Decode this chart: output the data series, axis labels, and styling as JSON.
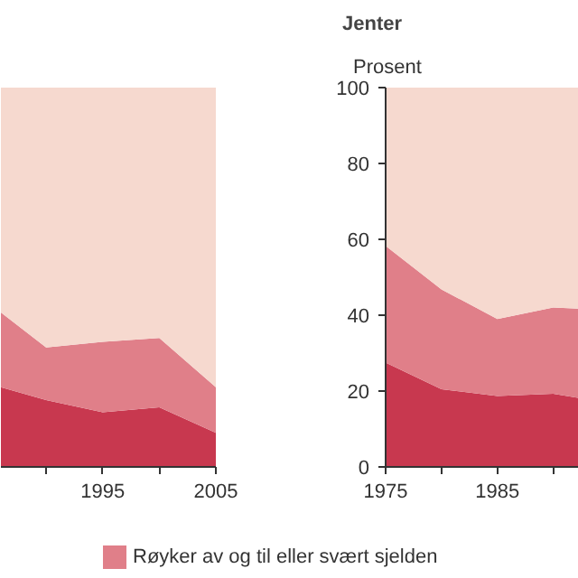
{
  "chart_data": [
    {
      "type": "area",
      "stacked": true,
      "x": [
        1986,
        1990,
        1995,
        2000,
        2005
      ],
      "xlim": [
        1986,
        2005
      ],
      "ylim": [
        0,
        100
      ],
      "xticks": [
        {
          "value": 1990,
          "label": null
        },
        1995,
        {
          "value": 2000,
          "label": null
        },
        2005
      ],
      "tick_labels": "x",
      "legend": "bottom",
      "series": [
        {
          "color": "#c8384f",
          "values": [
            21,
            17.6,
            14.4,
            15.7,
            9
          ]
        },
        {
          "name": "Røyker av og til eller svært sjelden",
          "color": "#e07f89",
          "values": [
            19.7,
            13.9,
            18.6,
            18.3,
            12
          ]
        },
        {
          "color": "#f6d9cf",
          "values": [
            59.3,
            68.5,
            67,
            66,
            79
          ]
        }
      ]
    },
    {
      "type": "area",
      "stacked": true,
      "title": "Jenter",
      "ylabel": "Prosent",
      "x": [
        1975,
        1980,
        1985,
        1990,
        1992.3
      ],
      "xlim": [
        1975,
        1992.3
      ],
      "ylim": [
        0,
        100
      ],
      "xticks": [
        1975,
        {
          "value": 1980,
          "label": null
        },
        1985,
        {
          "value": 1990,
          "label": null
        }
      ],
      "yticks": [
        0,
        20,
        40,
        60,
        80,
        100
      ],
      "series": [
        {
          "color": "#c8384f",
          "values": [
            27.5,
            20.5,
            18.7,
            19.3,
            18.2
          ]
        },
        {
          "color": "#e07f89",
          "values": [
            30.8,
            26.3,
            20.3,
            22.7,
            23.5
          ]
        },
        {
          "color": "#f6d9cf",
          "values": [
            41.7,
            53.2,
            61,
            58,
            58.3
          ]
        }
      ]
    }
  ]
}
